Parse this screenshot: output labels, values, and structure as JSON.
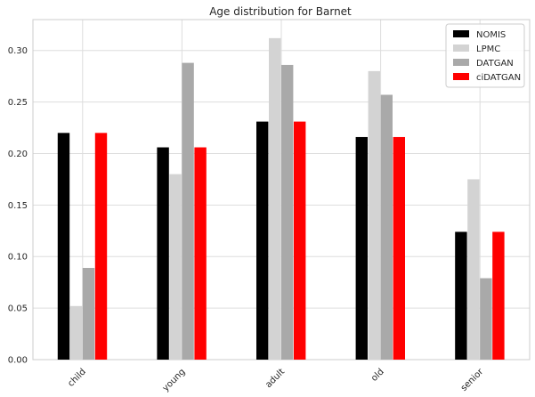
{
  "chart_data": {
    "type": "bar",
    "title": "Age distribution for Barnet",
    "xlabel": "",
    "ylabel": "",
    "categories": [
      "child",
      "young",
      "adult",
      "old",
      "senior"
    ],
    "series": [
      {
        "name": "NOMIS",
        "color": "#000000",
        "values": [
          0.22,
          0.206,
          0.231,
          0.216,
          0.124
        ]
      },
      {
        "name": "LPMC",
        "color": "#d3d3d3",
        "values": [
          0.052,
          0.18,
          0.312,
          0.28,
          0.175
        ]
      },
      {
        "name": "DATGAN",
        "color": "#a9a9a9",
        "values": [
          0.089,
          0.288,
          0.286,
          0.257,
          0.079
        ]
      },
      {
        "name": "ciDATGAN",
        "color": "#ff0000",
        "values": [
          0.22,
          0.206,
          0.231,
          0.216,
          0.124
        ]
      }
    ],
    "ylim": [
      0,
      0.33
    ],
    "yticks": [
      "0.00",
      "0.05",
      "0.10",
      "0.15",
      "0.20",
      "0.25",
      "0.30"
    ],
    "grid": true,
    "legend_position": "top-right"
  }
}
